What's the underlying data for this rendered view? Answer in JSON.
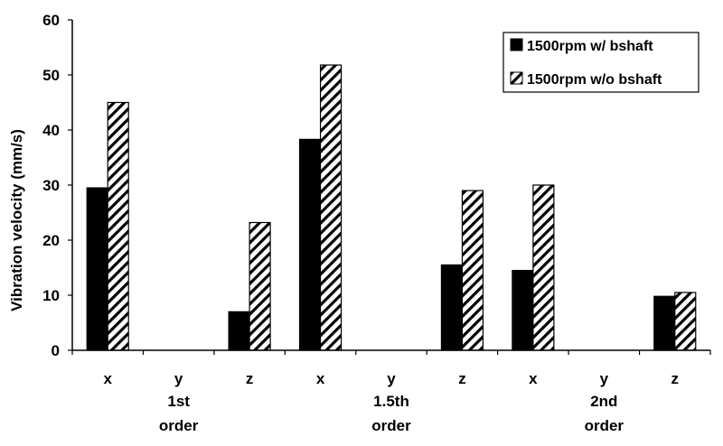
{
  "chart_data": {
    "type": "bar",
    "ylabel": "Vibration velocity (mm/s)",
    "ylim": [
      0,
      60
    ],
    "yticks": [
      0,
      10,
      20,
      30,
      40,
      50,
      60
    ],
    "grid": false,
    "legend_position": "top-right",
    "categories": [
      "x",
      "y",
      "z",
      "x",
      "y",
      "z",
      "x",
      "y",
      "z"
    ],
    "groups": [
      {
        "label_line1": "1st",
        "label_line2": "order"
      },
      {
        "label_line1": "1.5th",
        "label_line2": "order"
      },
      {
        "label_line1": "2nd",
        "label_line2": "order"
      }
    ],
    "series": [
      {
        "name": "1500rpm w/ bshaft",
        "pattern": "solid",
        "color": "#000000",
        "values": [
          29.5,
          0,
          7,
          38.3,
          0,
          15.5,
          14.5,
          0,
          9.8
        ]
      },
      {
        "name": "1500rpm w/o bshaft",
        "pattern": "hatched",
        "color": "#000000",
        "values": [
          45,
          0,
          23.2,
          51.8,
          0,
          29,
          30,
          0,
          10.5
        ]
      }
    ],
    "series_values_note_removed": true
  }
}
